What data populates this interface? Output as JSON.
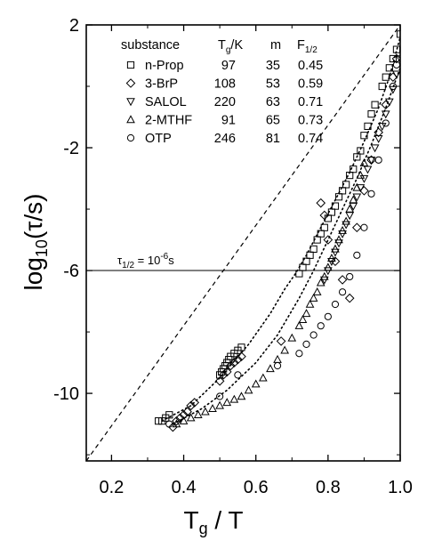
{
  "chart_data": {
    "type": "scatter",
    "xlabel": "T",
    "xlabel_sub": "g",
    "xlabel_suffix": " / T",
    "ylabel": "log",
    "ylabel_sub": "10",
    "ylabel_suffix": "(τ/s)",
    "xlim": [
      0.13,
      1.0
    ],
    "ylim": [
      -12.2,
      2
    ],
    "xticks": [
      0.2,
      0.4,
      0.6,
      0.8,
      1.0
    ],
    "xtick_labels": [
      "0.2",
      "0.4",
      "0.6",
      "0.8",
      "1.0"
    ],
    "yticks": [
      2,
      -2,
      -6,
      -10
    ],
    "ytick_labels": [
      "2",
      "-2",
      "-6",
      "-10"
    ],
    "grid": false,
    "legend_position": "top-left",
    "legend_header": {
      "substance": "substance",
      "tg": "T",
      "tg_sub": "g",
      "tg_unit": "/K",
      "m": "m",
      "f": "F",
      "f_sub": "1/2"
    },
    "legend": [
      {
        "name": "n-Prop",
        "marker": "square",
        "tg": "97",
        "m": "35",
        "f": "0.45"
      },
      {
        "name": "3-BrP",
        "marker": "diamond",
        "tg": "108",
        "m": "53",
        "f": "0.59"
      },
      {
        "name": "SALOL",
        "marker": "triangle-down",
        "tg": "220",
        "m": "63",
        "f": "0.71"
      },
      {
        "name": "2-MTHF",
        "marker": "triangle-up",
        "tg": "91",
        "m": "65",
        "f": "0.73"
      },
      {
        "name": "OTP",
        "marker": "circle",
        "tg": "246",
        "m": "81",
        "f": "0.74"
      }
    ],
    "annotation": {
      "text": "τ",
      "sub": "1/2",
      "mid": " = 10",
      "sup": "-6",
      "suffix": "s"
    },
    "hline": -6,
    "reference_line": {
      "x": [
        0.13,
        1.0
      ],
      "y": [
        -12.2,
        2
      ]
    },
    "series": [
      {
        "marker": "square",
        "x": [
          0.33,
          0.34,
          0.35,
          0.36,
          0.5,
          0.505,
          0.51,
          0.515,
          0.52,
          0.525,
          0.53,
          0.54,
          0.55,
          0.56,
          0.72,
          0.73,
          0.74,
          0.75,
          0.76,
          0.77,
          0.78,
          0.79,
          0.8,
          0.81,
          0.82,
          0.83,
          0.84,
          0.85,
          0.86,
          0.87,
          0.88,
          0.89,
          0.9,
          0.91,
          0.92,
          0.93,
          0.95,
          0.96,
          0.97,
          0.98,
          0.99,
          1.0
        ],
        "y": [
          -10.9,
          -10.9,
          -10.8,
          -10.7,
          -9.4,
          -9.3,
          -9.2,
          -9.1,
          -9.0,
          -8.9,
          -8.8,
          -8.7,
          -8.6,
          -8.5,
          -6.1,
          -5.9,
          -5.7,
          -5.5,
          -5.3,
          -5.0,
          -4.8,
          -4.6,
          -4.3,
          -4.1,
          -3.9,
          -3.6,
          -3.4,
          -3.2,
          -2.9,
          -2.7,
          -2.3,
          -2.1,
          -1.6,
          -1.3,
          -0.9,
          -0.6,
          0.0,
          0.3,
          0.6,
          0.9,
          1.2,
          1.7
        ]
      },
      {
        "marker": "diamond",
        "x": [
          0.37,
          0.38,
          0.39,
          0.4,
          0.41,
          0.42,
          0.43,
          0.5,
          0.51,
          0.52,
          0.53,
          0.54,
          0.55,
          0.56,
          0.67,
          0.78,
          0.79,
          0.8,
          0.82,
          0.84,
          0.86,
          0.88,
          0.9,
          0.92,
          0.94,
          0.96,
          0.98,
          0.99
        ],
        "y": [
          -11.1,
          -10.9,
          -10.8,
          -10.7,
          -10.6,
          -10.4,
          -10.3,
          -9.6,
          -9.4,
          -9.3,
          -9.1,
          -9.0,
          -8.9,
          -8.8,
          -8.3,
          -3.8,
          -4.2,
          -5.0,
          -5.7,
          -6.3,
          -6.9,
          -4.6,
          -3.4,
          -2.4,
          -1.5,
          -0.6,
          0.3,
          0.9
        ]
      },
      {
        "marker": "triangle-down",
        "x": [
          0.79,
          0.8,
          0.81,
          0.82,
          0.83,
          0.84,
          0.85,
          0.86,
          0.87,
          0.88,
          0.89,
          0.9,
          0.91,
          0.92,
          0.93,
          0.94,
          0.95,
          0.96,
          0.97,
          0.98,
          0.99,
          1.0
        ],
        "y": [
          -6.3,
          -6.0,
          -5.7,
          -5.4,
          -5.1,
          -4.8,
          -4.5,
          -4.2,
          -3.9,
          -3.6,
          -3.3,
          -3.0,
          -2.7,
          -2.4,
          -2.0,
          -1.7,
          -1.3,
          -0.9,
          -0.5,
          -0.1,
          0.4,
          0.9
        ]
      },
      {
        "marker": "triangle-up",
        "x": [
          0.38,
          0.4,
          0.42,
          0.44,
          0.46,
          0.48,
          0.5,
          0.52,
          0.54,
          0.56,
          0.58,
          0.6,
          0.62,
          0.64,
          0.66,
          0.68,
          0.7,
          0.72,
          0.73,
          0.74,
          0.75,
          0.76,
          0.77,
          0.78,
          0.79,
          0.8,
          0.81,
          0.82,
          0.83,
          0.84,
          0.85,
          0.86,
          0.87,
          0.88,
          0.89,
          0.9
        ],
        "y": [
          -11.0,
          -10.9,
          -10.8,
          -10.7,
          -10.6,
          -10.5,
          -10.4,
          -10.3,
          -10.2,
          -10.1,
          -9.9,
          -9.7,
          -9.5,
          -9.2,
          -8.9,
          -8.6,
          -8.2,
          -7.8,
          -7.6,
          -7.4,
          -7.1,
          -6.9,
          -6.7,
          -6.4,
          -6.2,
          -5.9,
          -5.6,
          -5.3,
          -5.0,
          -4.7,
          -4.4,
          -4.0,
          -3.7,
          -3.3,
          -2.9,
          -2.5
        ]
      },
      {
        "marker": "circle",
        "x": [
          0.36,
          0.5,
          0.55,
          0.66,
          0.72,
          0.74,
          0.76,
          0.78,
          0.8,
          0.82,
          0.84,
          0.86,
          0.88,
          0.9,
          0.92,
          0.94,
          0.96,
          0.98,
          0.99
        ],
        "y": [
          -11.0,
          -10.1,
          -9.4,
          -9.1,
          -8.7,
          -8.4,
          -8.1,
          -7.8,
          -7.5,
          -7.1,
          -6.7,
          -6.2,
          -5.5,
          -4.6,
          -3.5,
          -2.4,
          -1.2,
          0.0,
          0.7
        ]
      }
    ],
    "fit_curves": [
      {
        "x": [
          0.34,
          0.42,
          0.5,
          0.58,
          0.64,
          0.68,
          0.71,
          0.74,
          0.78,
          0.82,
          0.86,
          0.9,
          0.94,
          0.97,
          1.0
        ],
        "y": [
          -10.9,
          -10.4,
          -9.5,
          -8.4,
          -7.4,
          -6.6,
          -6.1,
          -5.5,
          -4.6,
          -3.7,
          -2.8,
          -1.8,
          -0.7,
          0.3,
          1.6
        ]
      },
      {
        "x": [
          0.37,
          0.45,
          0.52,
          0.6,
          0.66,
          0.72,
          0.76,
          0.8,
          0.84,
          0.88,
          0.92,
          0.96,
          1.0
        ],
        "y": [
          -11.0,
          -10.5,
          -9.9,
          -9.0,
          -8.1,
          -6.9,
          -6.0,
          -5.0,
          -4.0,
          -3.0,
          -1.9,
          -0.7,
          0.6
        ]
      }
    ]
  }
}
